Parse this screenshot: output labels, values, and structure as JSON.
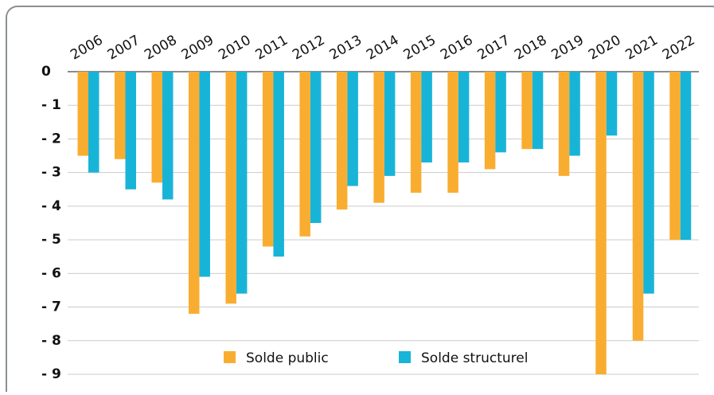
{
  "chart_data": {
    "type": "bar",
    "categories": [
      "2006",
      "2007",
      "2008",
      "2009",
      "2010",
      "2011",
      "2012",
      "2013",
      "2014",
      "2015",
      "2016",
      "2017",
      "2018",
      "2019",
      "2020",
      "2021",
      "2022"
    ],
    "series": [
      {
        "name": "Solde public",
        "color": "#f9ad30",
        "values": [
          -2.5,
          -2.6,
          -3.3,
          -7.2,
          -6.9,
          -5.2,
          -4.9,
          -4.1,
          -3.9,
          -3.6,
          -3.6,
          -2.9,
          -2.3,
          -3.1,
          -9.0,
          -8.0,
          -5.0
        ]
      },
      {
        "name": "Solde structurel",
        "color": "#18b4d8",
        "values": [
          -3.0,
          -3.5,
          -3.8,
          -6.1,
          -6.6,
          -5.5,
          -4.5,
          -3.4,
          -3.1,
          -2.7,
          -2.7,
          -2.4,
          -2.3,
          -2.5,
          -1.9,
          -6.6,
          -5.0
        ]
      }
    ],
    "ylim": [
      -9,
      0
    ],
    "yticks": [
      0,
      {
        "value": -1,
        "label": "- 1"
      },
      {
        "value": -2,
        "label": "- 2"
      },
      {
        "value": -3,
        "label": "- 3"
      },
      {
        "value": -4,
        "label": "- 4"
      },
      {
        "value": -5,
        "label": "- 5"
      },
      {
        "value": -6,
        "label": "- 6"
      },
      {
        "value": -7,
        "label": "- 7"
      },
      {
        "value": -8,
        "label": "- 8"
      },
      {
        "value": -9,
        "label": "- 9"
      }
    ],
    "grid": true,
    "legend": "bottom"
  }
}
